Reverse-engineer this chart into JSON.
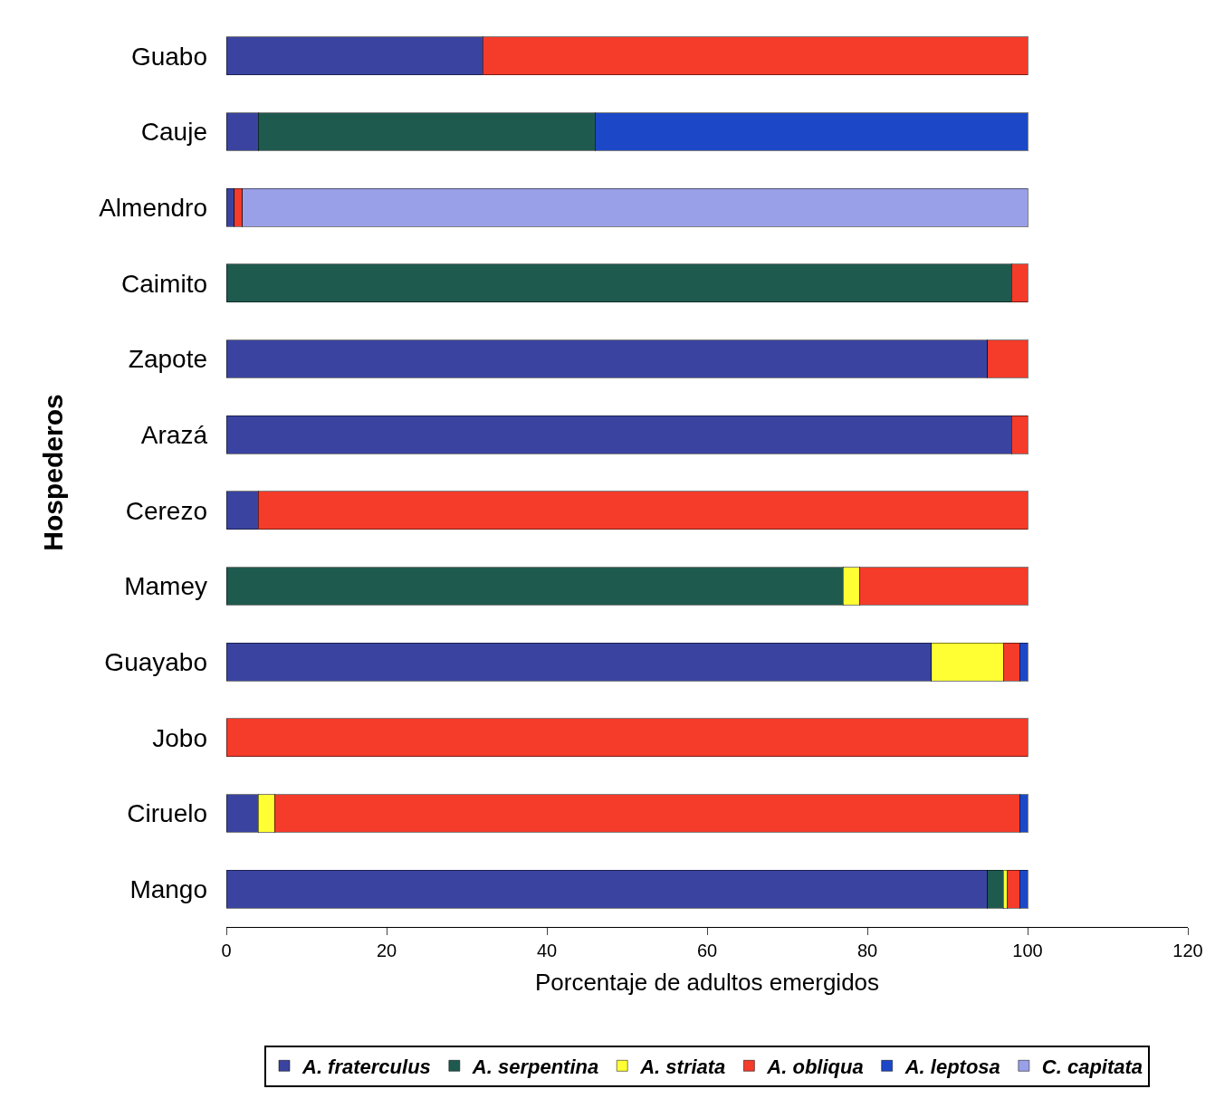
{
  "chart_data": {
    "type": "bar",
    "orientation": "horizontal",
    "stacked": true,
    "xlabel": "Porcentaje de adultos emergidos",
    "ylabel": "Hospederos",
    "categories": [
      "Guabo",
      "Cauje",
      "Almendro",
      "Caimito",
      "Zapote",
      "Arazá",
      "Cerezo",
      "Mamey",
      "Guayabo",
      "Jobo",
      "Ciruelo",
      "Mango"
    ],
    "series": [
      {
        "name": "A. fraterculus",
        "color": "#3a44a0",
        "values": [
          32,
          4,
          1,
          null,
          95,
          98,
          4,
          null,
          88,
          null,
          4,
          95
        ]
      },
      {
        "name": "A. serpentina",
        "color": "#1f5a4f",
        "values": [
          null,
          42,
          null,
          98,
          null,
          null,
          null,
          77,
          null,
          null,
          null,
          2
        ]
      },
      {
        "name": "A. striata",
        "color": "#ffff33",
        "values": [
          null,
          null,
          null,
          null,
          null,
          null,
          null,
          2,
          9,
          null,
          2,
          0.5
        ]
      },
      {
        "name": "A. obliqua",
        "color": "#f53b2a",
        "values": [
          68,
          null,
          1,
          2,
          5,
          2,
          96,
          21,
          2,
          100,
          93,
          1.5
        ]
      },
      {
        "name": "A. leptosa",
        "color": "#1c48c8",
        "values": [
          null,
          54,
          null,
          null,
          null,
          null,
          null,
          null,
          1,
          null,
          1,
          1
        ]
      },
      {
        "name": "C. capitata",
        "color": "#9aa0e8",
        "values": [
          null,
          null,
          98,
          null,
          null,
          null,
          null,
          null,
          null,
          null,
          null,
          null
        ]
      }
    ],
    "xlim": [
      0,
      120
    ],
    "xticks": [
      0,
      20,
      40,
      60,
      80,
      100,
      120
    ],
    "legend": "bottom"
  }
}
